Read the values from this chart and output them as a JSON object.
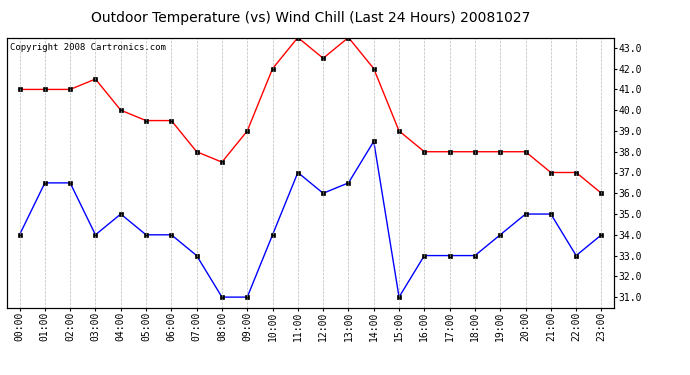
{
  "title": "Outdoor Temperature (vs) Wind Chill (Last 24 Hours) 20081027",
  "copyright": "Copyright 2008 Cartronics.com",
  "x_labels": [
    "00:00",
    "01:00",
    "02:00",
    "03:00",
    "04:00",
    "05:00",
    "06:00",
    "07:00",
    "08:00",
    "09:00",
    "10:00",
    "11:00",
    "12:00",
    "13:00",
    "14:00",
    "15:00",
    "16:00",
    "17:00",
    "18:00",
    "19:00",
    "20:00",
    "21:00",
    "22:00",
    "23:00"
  ],
  "temp_red": [
    41.0,
    41.0,
    41.0,
    41.5,
    40.0,
    39.5,
    39.5,
    38.0,
    37.5,
    39.0,
    42.0,
    43.5,
    42.5,
    43.5,
    42.0,
    39.0,
    38.0,
    38.0,
    38.0,
    38.0,
    38.0,
    37.0,
    37.0,
    36.0
  ],
  "wind_blue": [
    34.0,
    36.5,
    36.5,
    34.0,
    35.0,
    34.0,
    34.0,
    33.0,
    31.0,
    31.0,
    34.0,
    37.0,
    36.0,
    36.5,
    38.5,
    31.0,
    33.0,
    33.0,
    33.0,
    34.0,
    35.0,
    35.0,
    33.0,
    34.0
  ],
  "ylim_min": 31.0,
  "ylim_max": 43.0,
  "ytick_step": 1.0,
  "bg_color": "#ffffff",
  "plot_bg_color": "#ffffff",
  "grid_color": "#aaaaaa",
  "red_color": "#ff0000",
  "blue_color": "#0000ff",
  "title_fontsize": 10,
  "copyright_fontsize": 6.5,
  "tick_fontsize": 7
}
